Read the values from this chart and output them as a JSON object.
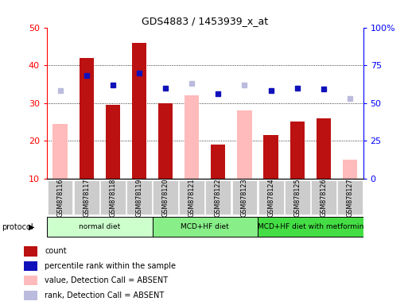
{
  "title": "GDS4883 / 1453939_x_at",
  "samples": [
    "GSM878116",
    "GSM878117",
    "GSM878118",
    "GSM878119",
    "GSM878120",
    "GSM878121",
    "GSM878122",
    "GSM878123",
    "GSM878124",
    "GSM878125",
    "GSM878126",
    "GSM878127"
  ],
  "count": [
    null,
    42,
    29.5,
    46,
    30,
    null,
    19,
    null,
    21.5,
    25,
    26,
    null
  ],
  "value_absent": [
    24.5,
    null,
    null,
    null,
    null,
    32,
    null,
    28,
    null,
    null,
    null,
    15
  ],
  "percentile_rank": [
    null,
    68,
    62,
    70,
    60,
    null,
    56,
    null,
    58,
    60,
    59,
    null
  ],
  "rank_absent": [
    58,
    null,
    null,
    null,
    null,
    63,
    null,
    62,
    null,
    null,
    null,
    53
  ],
  "protocols": [
    {
      "label": "normal diet",
      "start": 0,
      "end": 4,
      "color": "#ccffcc"
    },
    {
      "label": "MCD+HF diet",
      "start": 4,
      "end": 8,
      "color": "#88ee88"
    },
    {
      "label": "MCD+HF diet with metformin",
      "start": 8,
      "end": 12,
      "color": "#44dd44"
    }
  ],
  "ylim_left": [
    10,
    50
  ],
  "ylim_right": [
    0,
    100
  ],
  "yticks_left": [
    10,
    20,
    30,
    40,
    50
  ],
  "yticks_right": [
    0,
    25,
    50,
    75,
    100
  ],
  "ytick_labels_right": [
    "0",
    "25",
    "50",
    "75",
    "100%"
  ],
  "color_count": "#bb1111",
  "color_value_absent": "#ffbbbb",
  "color_percentile": "#1111bb",
  "color_rank_absent": "#bbbbdd",
  "bg_plot": "#ffffff",
  "bg_xtick": "#cccccc",
  "grid_lines": [
    20,
    30,
    40
  ],
  "legend_items": [
    {
      "color": "#bb1111",
      "label": "count"
    },
    {
      "color": "#1111bb",
      "label": "percentile rank within the sample"
    },
    {
      "color": "#ffbbbb",
      "label": "value, Detection Call = ABSENT"
    },
    {
      "color": "#bbbbdd",
      "label": "rank, Detection Call = ABSENT"
    }
  ]
}
